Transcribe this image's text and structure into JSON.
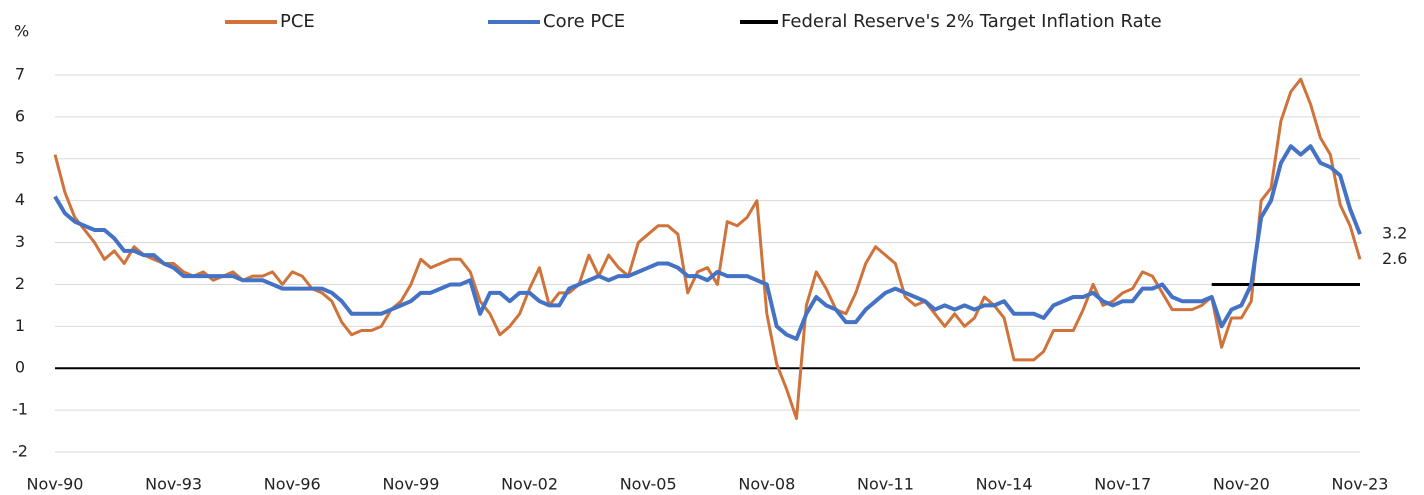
{
  "chart_data": {
    "type": "line",
    "y_label": "%",
    "legend": "top",
    "grid": true,
    "categories": [
      "Nov-90",
      null,
      null,
      null,
      null,
      null,
      null,
      null,
      null,
      null,
      null,
      null,
      "Nov-93",
      null,
      null,
      null,
      null,
      null,
      null,
      null,
      null,
      null,
      null,
      null,
      "Nov-96",
      null,
      null,
      null,
      null,
      null,
      null,
      null,
      null,
      null,
      null,
      null,
      "Nov-99",
      null,
      null,
      null,
      null,
      null,
      null,
      null,
      null,
      null,
      null,
      null,
      "Nov-02",
      null,
      null,
      null,
      null,
      null,
      null,
      null,
      null,
      null,
      null,
      null,
      "Nov-05",
      null,
      null,
      null,
      null,
      null,
      null,
      null,
      null,
      null,
      null,
      null,
      "Nov-08",
      null,
      null,
      null,
      null,
      null,
      null,
      null,
      null,
      null,
      null,
      null,
      "Nov-11",
      null,
      null,
      null,
      null,
      null,
      null,
      null,
      null,
      null,
      null,
      null,
      "Nov-14",
      null,
      null,
      null,
      null,
      null,
      null,
      null,
      null,
      null,
      null,
      null,
      "Nov-17",
      null,
      null,
      null,
      null,
      null,
      null,
      null,
      null,
      null,
      null,
      null,
      "Nov-20",
      null,
      null,
      null,
      null,
      null,
      null,
      null,
      null,
      null,
      null,
      null,
      "Nov-23"
    ],
    "ylim": [
      -2,
      7
    ],
    "yticks": [
      -2,
      -1,
      0,
      1,
      2,
      3,
      4,
      5,
      6,
      7
    ],
    "series": [
      {
        "name": "PCE",
        "color": "#d0733a",
        "end_label": true,
        "values": [
          5.1,
          4.2,
          3.6,
          3.3,
          3.0,
          2.6,
          2.8,
          2.5,
          2.9,
          2.7,
          2.6,
          2.5,
          2.5,
          2.3,
          2.2,
          2.3,
          2.1,
          2.2,
          2.3,
          2.1,
          2.2,
          2.2,
          2.3,
          2.0,
          2.3,
          2.2,
          1.9,
          1.8,
          1.6,
          1.1,
          0.8,
          0.9,
          0.9,
          1.0,
          1.4,
          1.6,
          2.0,
          2.6,
          2.4,
          2.5,
          2.6,
          2.6,
          2.3,
          1.6,
          1.3,
          0.8,
          1.0,
          1.3,
          1.9,
          2.4,
          1.5,
          1.8,
          1.8,
          2.0,
          2.7,
          2.2,
          2.7,
          2.4,
          2.2,
          3.0,
          3.2,
          3.4,
          3.4,
          3.2,
          1.8,
          2.3,
          2.4,
          2.0,
          3.5,
          3.4,
          3.6,
          4.0,
          1.3,
          0.1,
          -0.5,
          -1.2,
          1.5,
          2.3,
          1.9,
          1.4,
          1.3,
          1.8,
          2.5,
          2.9,
          2.7,
          2.5,
          1.7,
          1.5,
          1.6,
          1.3,
          1.0,
          1.3,
          1.0,
          1.2,
          1.7,
          1.5,
          1.2,
          0.2,
          0.2,
          0.2,
          0.4,
          0.9,
          0.9,
          0.9,
          1.4,
          2.0,
          1.5,
          1.6,
          1.8,
          1.9,
          2.3,
          2.2,
          1.8,
          1.4,
          1.4,
          1.4,
          1.5,
          1.7,
          0.5,
          1.2,
          1.2,
          1.6,
          4.0,
          4.3,
          5.9,
          6.6,
          6.9,
          6.3,
          5.5,
          5.1,
          3.9,
          3.4,
          2.6
        ]
      },
      {
        "name": "Core PCE",
        "color": "#4472c4",
        "end_label": true,
        "values": [
          4.1,
          3.7,
          3.5,
          3.4,
          3.3,
          3.3,
          3.1,
          2.8,
          2.8,
          2.7,
          2.7,
          2.5,
          2.4,
          2.2,
          2.2,
          2.2,
          2.2,
          2.2,
          2.2,
          2.1,
          2.1,
          2.1,
          2.0,
          1.9,
          1.9,
          1.9,
          1.9,
          1.9,
          1.8,
          1.6,
          1.3,
          1.3,
          1.3,
          1.3,
          1.4,
          1.5,
          1.6,
          1.8,
          1.8,
          1.9,
          2.0,
          2.0,
          2.1,
          1.3,
          1.8,
          1.8,
          1.6,
          1.8,
          1.8,
          1.6,
          1.5,
          1.5,
          1.9,
          2.0,
          2.1,
          2.2,
          2.1,
          2.2,
          2.2,
          2.3,
          2.4,
          2.5,
          2.5,
          2.4,
          2.2,
          2.2,
          2.1,
          2.3,
          2.2,
          2.2,
          2.2,
          2.1,
          2.0,
          1.0,
          0.8,
          0.7,
          1.3,
          1.7,
          1.5,
          1.4,
          1.1,
          1.1,
          1.4,
          1.6,
          1.8,
          1.9,
          1.8,
          1.7,
          1.6,
          1.4,
          1.5,
          1.4,
          1.5,
          1.4,
          1.5,
          1.5,
          1.6,
          1.3,
          1.3,
          1.3,
          1.2,
          1.5,
          1.6,
          1.7,
          1.7,
          1.8,
          1.6,
          1.5,
          1.6,
          1.6,
          1.9,
          1.9,
          2.0,
          1.7,
          1.6,
          1.6,
          1.6,
          1.7,
          1.0,
          1.4,
          1.5,
          2.0,
          3.6,
          4.0,
          4.9,
          5.3,
          5.1,
          5.3,
          4.9,
          4.8,
          4.6,
          3.8,
          3.2
        ]
      },
      {
        "name": "Federal Reserve's 2% Target Inflation Rate",
        "color": "#000000",
        "end_label": false,
        "values": [
          null,
          null,
          null,
          null,
          null,
          null,
          null,
          null,
          null,
          null,
          null,
          null,
          null,
          null,
          null,
          null,
          null,
          null,
          null,
          null,
          null,
          null,
          null,
          null,
          null,
          null,
          null,
          null,
          null,
          null,
          null,
          null,
          null,
          null,
          null,
          null,
          null,
          null,
          null,
          null,
          null,
          null,
          null,
          null,
          null,
          null,
          null,
          null,
          null,
          null,
          null,
          null,
          null,
          null,
          null,
          null,
          null,
          null,
          null,
          null,
          null,
          null,
          null,
          null,
          null,
          null,
          null,
          null,
          null,
          null,
          null,
          null,
          null,
          null,
          null,
          null,
          null,
          null,
          null,
          null,
          null,
          null,
          null,
          null,
          null,
          null,
          null,
          null,
          null,
          null,
          null,
          null,
          null,
          null,
          null,
          null,
          null,
          null,
          null,
          null,
          null,
          null,
          null,
          null,
          null,
          null,
          null,
          null,
          null,
          null,
          null,
          null,
          null,
          null,
          null,
          null,
          null,
          2,
          2,
          2,
          2,
          2,
          2,
          2,
          2,
          2,
          2,
          2,
          2,
          2,
          2,
          2,
          2
        ]
      }
    ]
  }
}
